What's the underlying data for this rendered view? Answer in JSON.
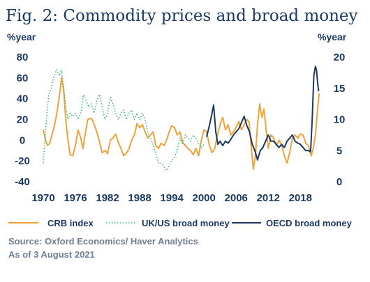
{
  "title": "Fig. 2: Commodity prices and broad money",
  "source_line1": "Source: Oxford Economics/ Haver Analytics",
  "source_line2": "As of 3 August 2021",
  "chart_data": {
    "type": "line",
    "title": "Fig. 2: Commodity prices and broad money",
    "y_left": {
      "label": "%year",
      "min": -40,
      "max": 80,
      "ticks": [
        80,
        60,
        40,
        20,
        0,
        -20,
        -40
      ]
    },
    "y_right": {
      "label": "%year",
      "min": 0,
      "max": 20,
      "ticks": [
        20,
        15,
        10,
        5,
        0
      ]
    },
    "x_axis": {
      "min": 1970,
      "max": 2022,
      "ticks": [
        1970,
        1976,
        1982,
        1988,
        1994,
        2000,
        2006,
        2012,
        2018
      ]
    },
    "grid": false,
    "legend_position": "bottom",
    "colors": {
      "crb": "#f0a23b",
      "ukus": "#3bb07a",
      "oecd": "#1b3a63"
    },
    "series": [
      {
        "name": "CRB index",
        "axis": "left",
        "color": "#f0a23b",
        "style": "solid",
        "points": [
          [
            1970.0,
            10
          ],
          [
            1970.4,
            0
          ],
          [
            1970.8,
            -5
          ],
          [
            1971.2,
            -3
          ],
          [
            1971.6,
            5
          ],
          [
            1972.0,
            12
          ],
          [
            1972.5,
            25
          ],
          [
            1973.0,
            42
          ],
          [
            1973.4,
            60
          ],
          [
            1973.8,
            48
          ],
          [
            1974.2,
            20
          ],
          [
            1974.6,
            0
          ],
          [
            1975.0,
            -14
          ],
          [
            1975.5,
            -15
          ],
          [
            1976.0,
            -5
          ],
          [
            1976.5,
            10
          ],
          [
            1977.0,
            2
          ],
          [
            1977.4,
            -8
          ],
          [
            1977.8,
            5
          ],
          [
            1978.3,
            20
          ],
          [
            1979.0,
            21
          ],
          [
            1979.5,
            15
          ],
          [
            1980.0,
            8
          ],
          [
            1980.5,
            -2
          ],
          [
            1981.0,
            -12
          ],
          [
            1981.6,
            -10
          ],
          [
            1982.0,
            -13
          ],
          [
            1982.5,
            0
          ],
          [
            1983.0,
            2
          ],
          [
            1983.5,
            6
          ],
          [
            1984.0,
            -2
          ],
          [
            1984.5,
            -8
          ],
          [
            1985.0,
            -15
          ],
          [
            1985.6,
            -12
          ],
          [
            1986.0,
            -8
          ],
          [
            1986.5,
            0
          ],
          [
            1987.0,
            5
          ],
          [
            1987.5,
            16
          ],
          [
            1988.0,
            12
          ],
          [
            1988.5,
            15
          ],
          [
            1989.0,
            8
          ],
          [
            1989.5,
            2
          ],
          [
            1990.0,
            5
          ],
          [
            1990.5,
            8
          ],
          [
            1991.0,
            -5
          ],
          [
            1991.5,
            -8
          ],
          [
            1992.0,
            -3
          ],
          [
            1992.6,
            -5
          ],
          [
            1993.0,
            0
          ],
          [
            1993.5,
            8
          ],
          [
            1994.0,
            14
          ],
          [
            1994.5,
            12
          ],
          [
            1995.0,
            5
          ],
          [
            1995.5,
            8
          ],
          [
            1996.0,
            -2
          ],
          [
            1996.5,
            -5
          ],
          [
            1997.0,
            -8
          ],
          [
            1997.5,
            -10
          ],
          [
            1998.0,
            -14
          ],
          [
            1998.5,
            -8
          ],
          [
            1999.0,
            -15
          ],
          [
            1999.5,
            0
          ],
          [
            2000.0,
            10
          ],
          [
            2000.5,
            8
          ],
          [
            2001.0,
            -5
          ],
          [
            2001.5,
            -12
          ],
          [
            2002.0,
            -8
          ],
          [
            2002.5,
            5
          ],
          [
            2003.0,
            15
          ],
          [
            2003.5,
            22
          ],
          [
            2004.0,
            10
          ],
          [
            2004.5,
            15
          ],
          [
            2005.0,
            5
          ],
          [
            2005.5,
            8
          ],
          [
            2006.0,
            12
          ],
          [
            2006.5,
            18
          ],
          [
            2007.0,
            10
          ],
          [
            2007.5,
            15
          ],
          [
            2008.0,
            20
          ],
          [
            2008.4,
            18
          ],
          [
            2008.8,
            -5
          ],
          [
            2009.2,
            -28
          ],
          [
            2009.6,
            -15
          ],
          [
            2010.0,
            15
          ],
          [
            2010.4,
            35
          ],
          [
            2010.8,
            22
          ],
          [
            2011.2,
            30
          ],
          [
            2011.6,
            10
          ],
          [
            2012.0,
            -8
          ],
          [
            2012.5,
            5
          ],
          [
            2013.0,
            2
          ],
          [
            2013.5,
            -5
          ],
          [
            2014.0,
            0
          ],
          [
            2014.5,
            -5
          ],
          [
            2015.0,
            -15
          ],
          [
            2015.5,
            -22
          ],
          [
            2016.0,
            -12
          ],
          [
            2016.5,
            2
          ],
          [
            2017.0,
            5
          ],
          [
            2017.5,
            2
          ],
          [
            2018.0,
            6
          ],
          [
            2018.5,
            5
          ],
          [
            2019.0,
            -3
          ],
          [
            2019.5,
            -5
          ],
          [
            2020.0,
            -15
          ],
          [
            2020.4,
            -8
          ],
          [
            2020.8,
            5
          ],
          [
            2021.2,
            30
          ],
          [
            2021.5,
            45
          ]
        ]
      },
      {
        "name": "UK/US broad money",
        "axis": "right",
        "color": "#3bb07a",
        "style": "dotted",
        "points": [
          [
            1970.0,
            3
          ],
          [
            1970.5,
            9
          ],
          [
            1971.0,
            14
          ],
          [
            1971.5,
            15
          ],
          [
            1972.0,
            17
          ],
          [
            1972.5,
            18
          ],
          [
            1973.0,
            17
          ],
          [
            1973.4,
            18
          ],
          [
            1973.8,
            15
          ],
          [
            1974.2,
            12
          ],
          [
            1974.6,
            10
          ],
          [
            1975.0,
            11
          ],
          [
            1975.5,
            10.5
          ],
          [
            1976.0,
            11
          ],
          [
            1976.5,
            10
          ],
          [
            1977.0,
            11
          ],
          [
            1977.5,
            14
          ],
          [
            1978.0,
            13
          ],
          [
            1978.5,
            12
          ],
          [
            1979.0,
            12.5
          ],
          [
            1979.5,
            11
          ],
          [
            1980.0,
            13
          ],
          [
            1980.5,
            14
          ],
          [
            1981.0,
            12
          ],
          [
            1981.5,
            10
          ],
          [
            1982.0,
            11
          ],
          [
            1982.5,
            13.5
          ],
          [
            1983.0,
            12.5
          ],
          [
            1983.5,
            11
          ],
          [
            1984.0,
            10
          ],
          [
            1984.5,
            11
          ],
          [
            1985.0,
            11.5
          ],
          [
            1985.5,
            10
          ],
          [
            1986.0,
            11
          ],
          [
            1986.5,
            11.5
          ],
          [
            1987.0,
            10
          ],
          [
            1987.5,
            11
          ],
          [
            1988.0,
            10
          ],
          [
            1988.5,
            11
          ],
          [
            1989.0,
            10
          ],
          [
            1989.5,
            8
          ],
          [
            1990.0,
            7
          ],
          [
            1990.5,
            6
          ],
          [
            1991.0,
            4.5
          ],
          [
            1991.5,
            3
          ],
          [
            1992.0,
            3
          ],
          [
            1992.5,
            2.5
          ],
          [
            1993.0,
            1.8
          ],
          [
            1993.5,
            2.5
          ],
          [
            1994.0,
            3.5
          ],
          [
            1994.5,
            4
          ],
          [
            1995.0,
            5
          ],
          [
            1995.5,
            7
          ],
          [
            1996.0,
            6
          ],
          [
            1996.5,
            7.5
          ],
          [
            1997.0,
            7
          ],
          [
            1997.5,
            6.5
          ],
          [
            1998.0,
            7.5
          ],
          [
            1998.5,
            7
          ],
          [
            1999.0,
            6
          ],
          [
            1999.5,
            5.5
          ],
          [
            2000.0,
            6
          ]
        ]
      },
      {
        "name": "OECD broad money",
        "axis": "right",
        "color": "#1b3a63",
        "style": "solid",
        "points": [
          [
            2000.5,
            7.2
          ],
          [
            2001.0,
            9
          ],
          [
            2001.5,
            11
          ],
          [
            2001.8,
            12.3
          ],
          [
            2002.2,
            8
          ],
          [
            2002.6,
            6
          ],
          [
            2003.0,
            6.5
          ],
          [
            2003.5,
            5.8
          ],
          [
            2004.0,
            6.5
          ],
          [
            2004.5,
            6.2
          ],
          [
            2005.0,
            6.8
          ],
          [
            2005.5,
            7.5
          ],
          [
            2006.0,
            8
          ],
          [
            2006.5,
            8.5
          ],
          [
            2007.0,
            9.5
          ],
          [
            2007.5,
            10.5
          ],
          [
            2008.0,
            9
          ],
          [
            2008.5,
            8
          ],
          [
            2009.0,
            6
          ],
          [
            2009.5,
            5
          ],
          [
            2010.0,
            3.5
          ],
          [
            2010.5,
            5
          ],
          [
            2011.0,
            5.5
          ],
          [
            2011.5,
            6.5
          ],
          [
            2012.0,
            7.5
          ],
          [
            2012.5,
            6.5
          ],
          [
            2013.0,
            6.5
          ],
          [
            2013.5,
            6
          ],
          [
            2014.0,
            5.5
          ],
          [
            2014.5,
            6
          ],
          [
            2015.0,
            5.5
          ],
          [
            2015.5,
            6.5
          ],
          [
            2016.0,
            7
          ],
          [
            2016.5,
            7.5
          ],
          [
            2017.0,
            6.5
          ],
          [
            2017.5,
            6.2
          ],
          [
            2018.0,
            6
          ],
          [
            2018.5,
            5.5
          ],
          [
            2019.0,
            5
          ],
          [
            2019.5,
            5
          ],
          [
            2019.9,
            4.8
          ],
          [
            2020.2,
            10
          ],
          [
            2020.5,
            17
          ],
          [
            2020.8,
            18.5
          ],
          [
            2021.0,
            18
          ],
          [
            2021.2,
            16
          ],
          [
            2021.4,
            14.5
          ]
        ]
      }
    ]
  }
}
